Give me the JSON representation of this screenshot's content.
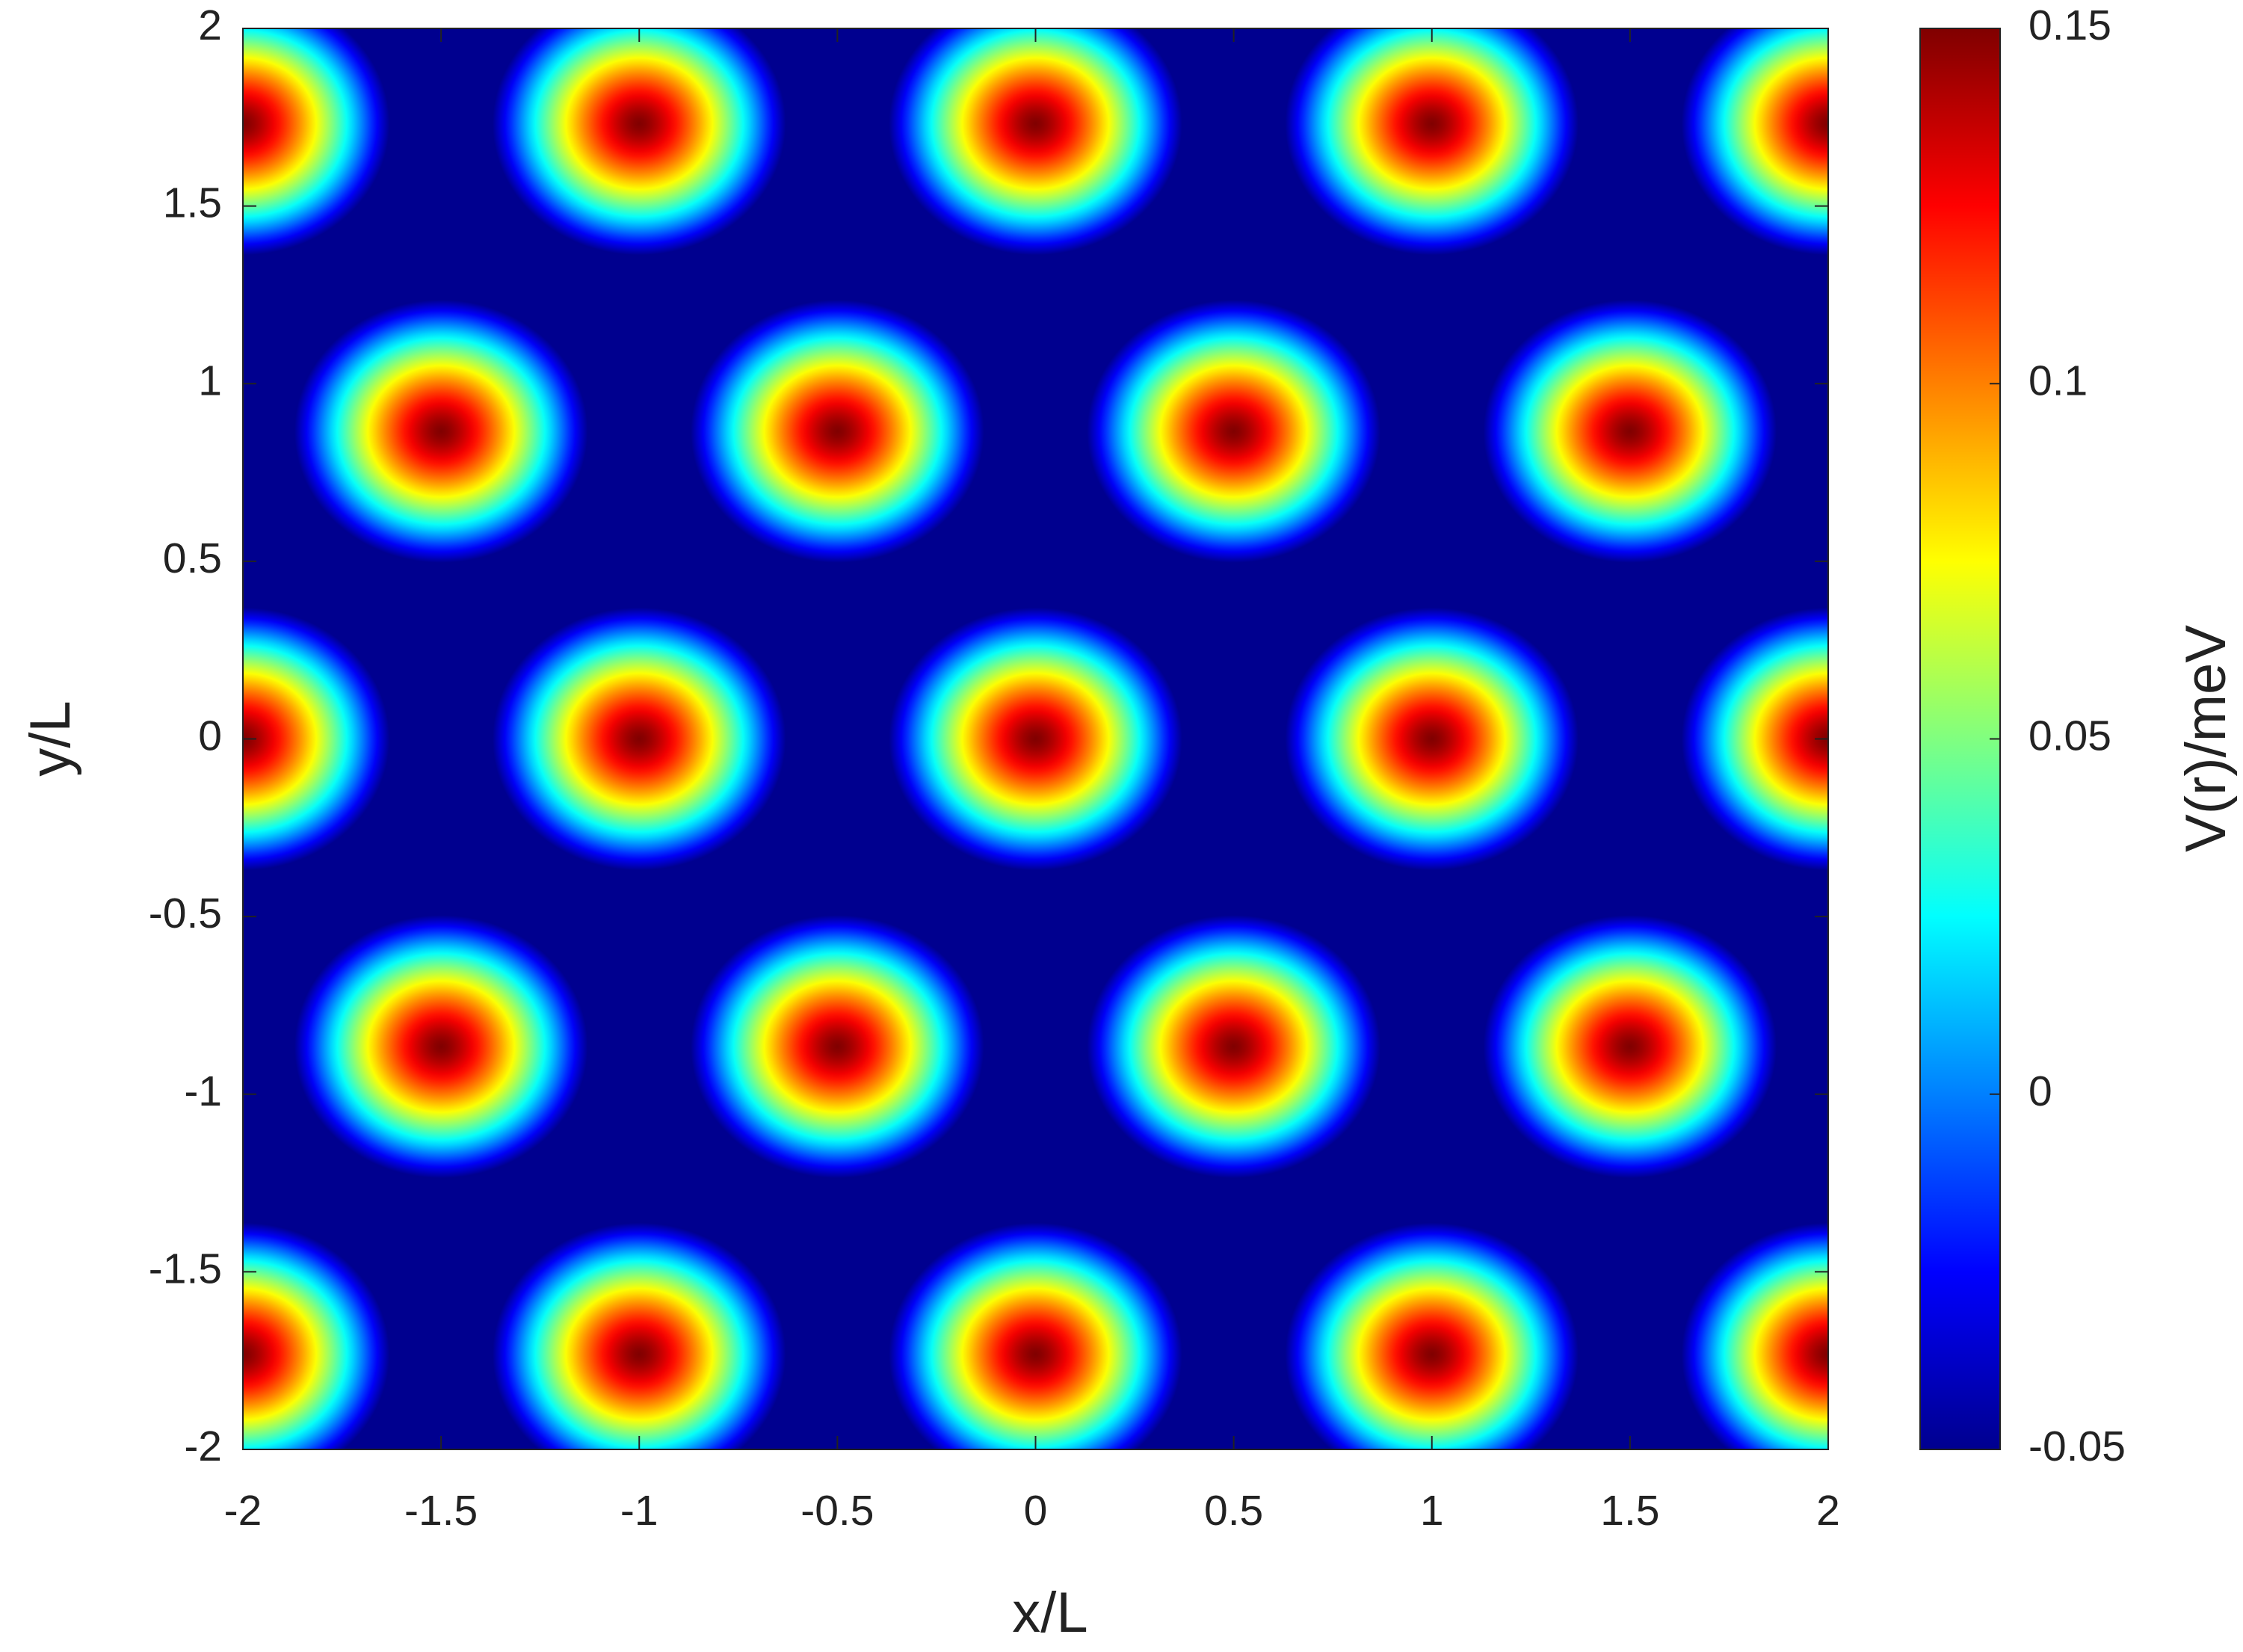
{
  "chart_data": {
    "type": "heatmap",
    "xlabel": "x/L",
    "ylabel": "y/L",
    "colorbar_label": "V(r)/meV",
    "colormap": "jet",
    "colormap_reversed": true,
    "clim": [
      -0.05,
      0.15
    ],
    "cticks": [
      -0.05,
      0,
      0.05,
      0.1,
      0.15
    ],
    "xlim": [
      -2,
      2
    ],
    "xticks": [
      -2,
      -1.5,
      -1,
      -0.5,
      0,
      0.5,
      1,
      1.5,
      2
    ],
    "ylim": [
      -2,
      2
    ],
    "yticks": [
      -2,
      -1.5,
      -1,
      -0.5,
      0,
      0.5,
      1,
      1.5,
      2
    ],
    "x": [
      -2,
      -1,
      0,
      1,
      2,
      -1.5,
      -0.5,
      0.5,
      1.5,
      -2,
      -1,
      0,
      1,
      2,
      -1.5,
      -0.5,
      0.5,
      1.5,
      -2,
      -1,
      0,
      1,
      2
    ],
    "y": [
      1.732,
      1.732,
      1.732,
      1.732,
      1.732,
      0.866,
      0.866,
      0.866,
      0.866,
      0,
      0,
      0,
      0,
      0,
      -0.866,
      -0.866,
      -0.866,
      -0.866,
      -1.732,
      -1.732,
      -1.732,
      -1.732,
      -1.732
    ],
    "values": [
      0.15,
      0.15,
      0.15,
      0.15,
      0.15,
      0.15,
      0.15,
      0.15,
      0.15,
      0.15,
      0.15,
      0.15,
      0.15,
      0.15,
      0.15,
      0.15,
      0.15,
      0.15,
      0.15,
      0.15,
      0.15,
      0.15,
      0.15
    ]
  }
}
